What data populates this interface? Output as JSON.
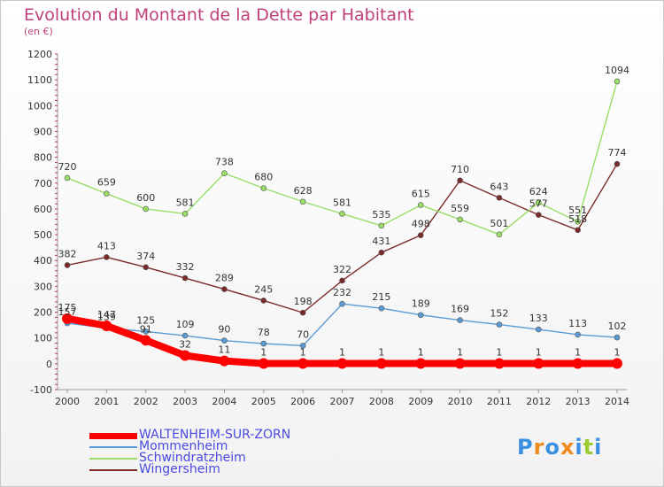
{
  "chart_data": {
    "type": "line",
    "title": "Evolution du Montant de la Dette par Habitant",
    "unit": "(en €)",
    "xlabel": "",
    "ylabel": "",
    "x": [
      "2000",
      "2001",
      "2002",
      "2003",
      "2004",
      "2005",
      "2006",
      "2007",
      "2008",
      "2009",
      "2010",
      "2011",
      "2012",
      "2013",
      "2014"
    ],
    "ylim": [
      -100,
      1200
    ],
    "yticks": [
      -100,
      0,
      100,
      200,
      300,
      400,
      500,
      600,
      700,
      800,
      900,
      1000,
      1100,
      1200
    ],
    "ytick_labels": [
      "-100",
      "0",
      "100",
      "200",
      "300",
      "400",
      "500",
      "600",
      "700",
      "800",
      "900",
      "1000",
      "1100",
      "1200"
    ],
    "grid": false,
    "legend_position": "bottom-left",
    "series": [
      {
        "name": "WALTENHEIM-SUR-ZORN",
        "color": "#ff0000",
        "values": [
          175,
          147,
          91,
          32,
          11,
          1,
          1,
          1,
          1,
          1,
          1,
          1,
          1,
          1,
          1
        ]
      },
      {
        "name": "Mommenheim",
        "color": "#5b9bd5",
        "values": [
          157,
          139,
          125,
          109,
          90,
          78,
          70,
          232,
          215,
          189,
          169,
          152,
          133,
          113,
          102
        ]
      },
      {
        "name": "Schwindratzheim",
        "color": "#99dd66",
        "values": [
          720,
          659,
          600,
          581,
          738,
          680,
          628,
          581,
          535,
          615,
          559,
          501,
          624,
          551,
          1094
        ]
      },
      {
        "name": "Wingersheim",
        "color": "#7b2a2a",
        "values": [
          382,
          413,
          374,
          332,
          289,
          245,
          198,
          322,
          431,
          498,
          710,
          643,
          577,
          518,
          774
        ]
      }
    ],
    "logo": {
      "text": "Proxiti",
      "letters": [
        "P",
        "r",
        "o",
        "x",
        "i",
        "t",
        "i"
      ],
      "letter_colors": [
        "#3a8fe0",
        "#f08a1c",
        "#3a8fe0",
        "#f08a1c",
        "#3a8fe0",
        "#9acd32",
        "#3a8fe0"
      ]
    }
  }
}
